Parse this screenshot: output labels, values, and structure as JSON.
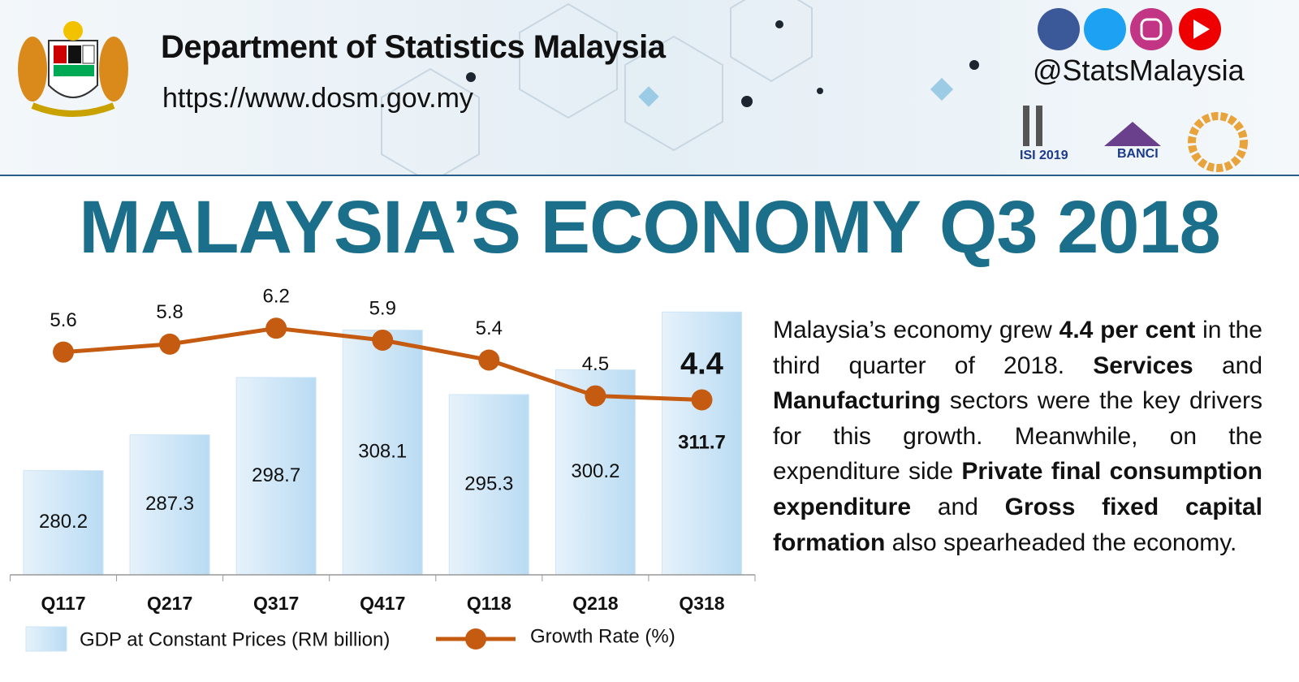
{
  "header": {
    "title": "Department of Statistics Malaysia",
    "url": "https://www.dosm.gov.my",
    "handle": "@StatsMalaysia",
    "logos": [
      "ISI 2019",
      "BANCI"
    ]
  },
  "title": "MALAYSIA’S ECONOMY Q3 2018",
  "text": [
    {
      "text": "Malaysia’s economy grew ",
      "bold": false
    },
    {
      "text": "4.4 per cent",
      "bold": true
    },
    {
      "text": " in the third quarter of 2018. ",
      "bold": false
    },
    {
      "text": "Services",
      "bold": true
    },
    {
      "text": " and ",
      "bold": false
    },
    {
      "text": "Manufacturing",
      "bold": true
    },
    {
      "text": " sectors were the key drivers for this growth. Meanwhile, on the expenditure side ",
      "bold": false
    },
    {
      "text": "Private final consumption expenditure",
      "bold": true
    },
    {
      "text": " and ",
      "bold": false
    },
    {
      "text": "Gross fixed capital formation",
      "bold": true
    },
    {
      "text": " also spearheaded the economy.",
      "bold": false
    }
  ],
  "chart_data": {
    "type": "combo",
    "categories": [
      "Q117",
      "Q217",
      "Q317",
      "Q417",
      "Q118",
      "Q218",
      "Q318"
    ],
    "series": [
      {
        "name": "GDP at Constant Prices (RM billion)",
        "type": "bar",
        "color": "#cde5f6",
        "values": [
          280.2,
          287.3,
          298.7,
          308.1,
          295.3,
          300.2,
          311.7
        ]
      },
      {
        "name": "Growth Rate (%)",
        "type": "line",
        "axis": "y2",
        "color": "#c55a11",
        "values": [
          5.6,
          5.8,
          6.2,
          5.9,
          5.4,
          4.5,
          4.4
        ]
      }
    ],
    "ylim": [
      259.5,
      314
    ],
    "y2lim": [
      0,
      6.9
    ],
    "legend": "bottom"
  }
}
